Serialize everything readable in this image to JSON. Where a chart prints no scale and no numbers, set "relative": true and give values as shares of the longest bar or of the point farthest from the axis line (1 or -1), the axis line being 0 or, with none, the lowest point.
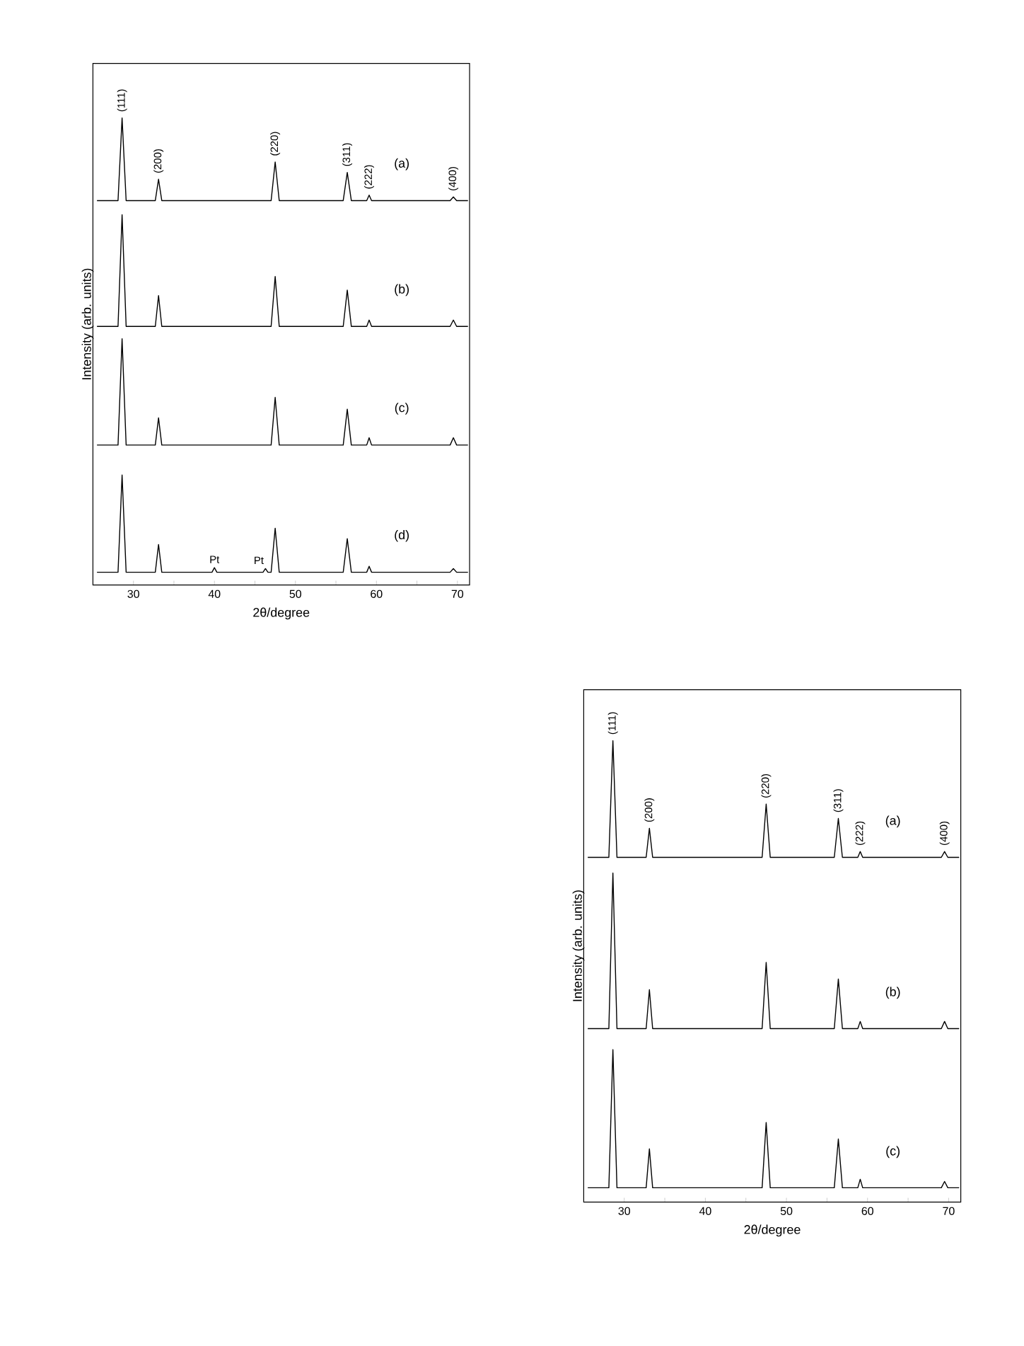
{
  "chart_data": [
    {
      "type": "line",
      "relative": true,
      "xlabel": "2θ/degree",
      "ylabel": "Intensity (arb. units)",
      "xlim": [
        25,
        71.5
      ],
      "xticks": [
        30,
        {
          "value": 35,
          "label": null
        },
        40,
        {
          "value": 45,
          "label": null
        },
        50,
        {
          "value": 55,
          "label": null
        },
        60,
        {
          "value": 65,
          "label": null
        },
        70
      ],
      "x": [
        25.5,
        28.1,
        28.6,
        29.1,
        32.7,
        33.1,
        33.5,
        39.7,
        40.0,
        40.3,
        46.0,
        46.3,
        46.6,
        47.0,
        47.5,
        48.0,
        55.9,
        56.4,
        56.9,
        58.8,
        59.1,
        59.4,
        69.1,
        69.5,
        69.9,
        71.3
      ],
      "series": [
        {
          "name": "(a)",
          "color": "#000000",
          "values": [
            0.818,
            0.818,
            1.0,
            0.818,
            0.818,
            0.865,
            0.818,
            0.818,
            0.818,
            0.818,
            0.818,
            0.818,
            0.818,
            0.818,
            0.903,
            0.818,
            0.818,
            0.88,
            0.818,
            0.818,
            0.83,
            0.818,
            0.818,
            0.826,
            0.818,
            0.818
          ]
        },
        {
          "name": "(b)",
          "color": "#000000",
          "values": [
            0.541,
            0.541,
            0.787,
            0.541,
            0.541,
            0.609,
            0.541,
            0.541,
            0.541,
            0.541,
            0.541,
            0.541,
            0.541,
            0.541,
            0.651,
            0.541,
            0.541,
            0.621,
            0.541,
            0.541,
            0.555,
            0.541,
            0.541,
            0.555,
            0.541,
            0.541
          ]
        },
        {
          "name": "(c)",
          "color": "#000000",
          "values": [
            0.28,
            0.28,
            0.514,
            0.28,
            0.28,
            0.34,
            0.28,
            0.28,
            0.28,
            0.28,
            0.28,
            0.28,
            0.28,
            0.28,
            0.385,
            0.28,
            0.28,
            0.359,
            0.28,
            0.28,
            0.296,
            0.28,
            0.28,
            0.296,
            0.28,
            0.28
          ]
        },
        {
          "name": "(d)",
          "color": "#000000",
          "values": [
            0,
            0,
            0.214,
            0,
            0,
            0.061,
            0,
            0,
            0.01,
            0,
            0,
            0.008,
            0,
            0,
            0.097,
            0,
            0,
            0.074,
            0,
            0,
            0.013,
            0,
            0,
            0.008,
            0,
            0
          ]
        }
      ],
      "annotations": [
        {
          "text": "(111)",
          "x": 28.6,
          "y": 1.0
        },
        {
          "text": "(200)",
          "x": 33.1,
          "y": 0.865
        },
        {
          "text": "(220)",
          "x": 47.5,
          "y": 0.903
        },
        {
          "text": "(311)",
          "x": 56.4,
          "y": 0.88
        },
        {
          "text": "(222)",
          "x": 59.1,
          "y": 0.83
        },
        {
          "text": "(400)",
          "x": 69.5,
          "y": 0.826
        },
        {
          "text": "Pt",
          "x": 40.0,
          "y": 0.01
        },
        {
          "text": "Pt",
          "x": 46.3,
          "y": 0.008
        }
      ]
    },
    {
      "type": "line",
      "relative": true,
      "xlabel": "2θ/degree",
      "ylabel": "Intensity (arb. units)",
      "xlim": [
        25,
        71.5
      ],
      "xticks": [
        30,
        {
          "value": 35,
          "label": null
        },
        40,
        {
          "value": 45,
          "label": null
        },
        50,
        {
          "value": 55,
          "label": null
        },
        60,
        {
          "value": 65,
          "label": null
        },
        70
      ],
      "x": [
        25.5,
        28.1,
        28.6,
        29.1,
        32.7,
        33.1,
        33.5,
        47.0,
        47.5,
        48.0,
        55.9,
        56.4,
        56.9,
        58.8,
        59.1,
        59.4,
        69.1,
        69.5,
        69.9,
        71.3
      ],
      "series": [
        {
          "name": "(a)",
          "color": "#000000",
          "values": [
            0.739,
            0.739,
            1.0,
            0.739,
            0.739,
            0.804,
            0.739,
            0.739,
            0.858,
            0.739,
            0.739,
            0.826,
            0.739,
            0.739,
            0.752,
            0.739,
            0.739,
            0.752,
            0.739,
            0.739
          ]
        },
        {
          "name": "(b)",
          "color": "#000000",
          "values": [
            0.356,
            0.356,
            0.704,
            0.356,
            0.356,
            0.443,
            0.356,
            0.356,
            0.504,
            0.356,
            0.356,
            0.467,
            0.356,
            0.356,
            0.372,
            0.356,
            0.356,
            0.372,
            0.356,
            0.356
          ]
        },
        {
          "name": "(c)",
          "color": "#000000",
          "values": [
            0,
            0,
            0.309,
            0,
            0,
            0.087,
            0,
            0,
            0.146,
            0,
            0,
            0.109,
            0,
            0,
            0.019,
            0,
            0,
            0.014,
            0,
            0
          ]
        }
      ],
      "annotations": [
        {
          "text": "(111)",
          "x": 28.6,
          "y": 1.0
        },
        {
          "text": "(200)",
          "x": 33.1,
          "y": 0.804
        },
        {
          "text": "(220)",
          "x": 47.5,
          "y": 0.858
        },
        {
          "text": "(311)",
          "x": 56.4,
          "y": 0.826
        },
        {
          "text": "(222)",
          "x": 59.1,
          "y": 0.752
        },
        {
          "text": "(400)",
          "x": 69.5,
          "y": 0.752
        }
      ]
    }
  ]
}
